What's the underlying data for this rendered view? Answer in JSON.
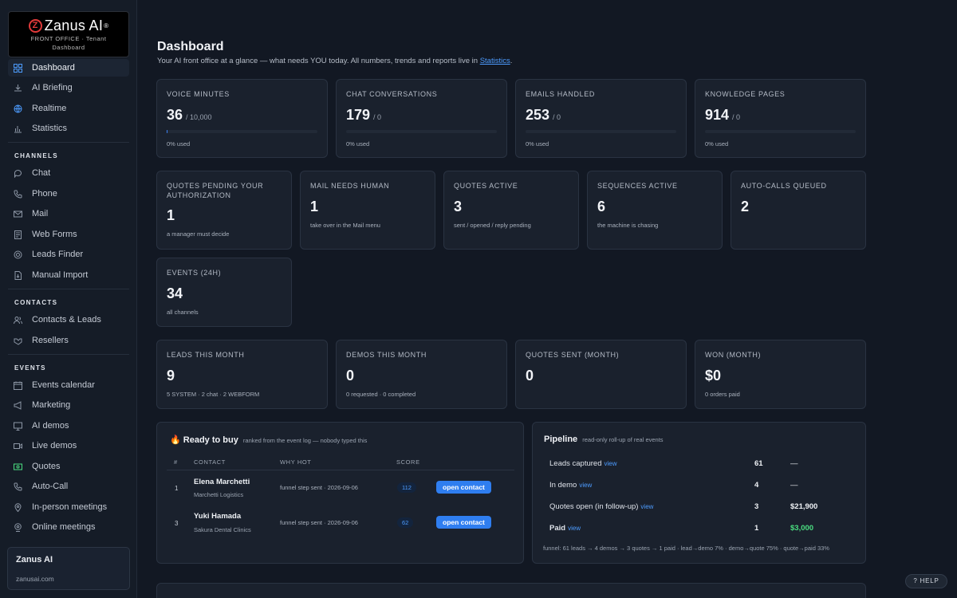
{
  "brand": {
    "name": "Zanus AI",
    "registered": "®",
    "sub1": "FRONT OFFICE · Tenant",
    "sub2": "Dashboard"
  },
  "sidebar": {
    "top_items": [
      {
        "label": "Dashboard",
        "icon": "grid-icon",
        "active": true
      },
      {
        "label": "AI Briefing",
        "icon": "briefing-icon"
      },
      {
        "label": "Realtime",
        "icon": "globe-icon"
      },
      {
        "label": "Statistics",
        "icon": "bar-chart-icon"
      }
    ],
    "sections": {
      "channels": "CHANNELS",
      "contacts": "CONTACTS",
      "events": "EVENTS"
    },
    "channels": [
      {
        "label": "Chat",
        "icon": "chat-icon"
      },
      {
        "label": "Phone",
        "icon": "phone-icon"
      },
      {
        "label": "Mail",
        "icon": "mail-icon"
      },
      {
        "label": "Web Forms",
        "icon": "form-icon"
      },
      {
        "label": "Leads Finder",
        "icon": "radar-icon"
      },
      {
        "label": "Manual Import",
        "icon": "import-icon"
      }
    ],
    "contacts": [
      {
        "label": "Contacts & Leads",
        "icon": "users-icon"
      },
      {
        "label": "Resellers",
        "icon": "handshake-icon"
      }
    ],
    "events": [
      {
        "label": "Events calendar",
        "icon": "calendar-icon"
      },
      {
        "label": "Marketing",
        "icon": "megaphone-icon"
      },
      {
        "label": "AI demos",
        "icon": "screen-icon"
      },
      {
        "label": "Live demos",
        "icon": "video-icon"
      },
      {
        "label": "Quotes",
        "icon": "quote-icon"
      },
      {
        "label": "Auto-Call",
        "icon": "auto-call-icon"
      },
      {
        "label": "In-person meetings",
        "icon": "pin-icon"
      },
      {
        "label": "Online meetings",
        "icon": "webcam-icon"
      }
    ],
    "tenant": {
      "name": "Zanus AI",
      "domain": "zanusai.com"
    }
  },
  "header": {
    "title": "Dashboard",
    "subtitle": "Your AI front office at a glance — what needs YOU today. All numbers, trends and reports live in",
    "link": "Statistics",
    "period": "."
  },
  "usage": [
    {
      "label": "VOICE MINUTES",
      "value": "36",
      "of": "/ 10,000",
      "note": "0% used",
      "fraction": 0.0036
    },
    {
      "label": "CHAT CONVERSATIONS",
      "value": "179",
      "of": "/ 0",
      "note": "0% used",
      "fraction": 0
    },
    {
      "label": "EMAILS HANDLED",
      "value": "253",
      "of": "/ 0",
      "note": "0% used",
      "fraction": 0
    },
    {
      "label": "KNOWLEDGE PAGES",
      "value": "914",
      "of": "/ 0",
      "note": "0% used",
      "fraction": 0
    }
  ],
  "attention": [
    {
      "label": "QUOTES PENDING YOUR AUTHORIZATION",
      "value": "1",
      "note": "a manager must decide"
    },
    {
      "label": "MAIL NEEDS HUMAN",
      "value": "1",
      "note": "take over in the Mail menu"
    },
    {
      "label": "QUOTES ACTIVE",
      "value": "3",
      "note": "sent / opened / reply pending"
    },
    {
      "label": "SEQUENCES ACTIVE",
      "value": "6",
      "note": "the machine is chasing"
    },
    {
      "label": "AUTO-CALLS QUEUED",
      "value": "2",
      "note": ""
    },
    {
      "label": "EVENTS (24H)",
      "value": "34",
      "note": "all channels"
    }
  ],
  "month": [
    {
      "label": "LEADS THIS MONTH",
      "value": "9",
      "note": "5 SYSTEM · 2 chat · 2 WEBFORM"
    },
    {
      "label": "DEMOS THIS MONTH",
      "value": "0",
      "note": "0 requested · 0 completed"
    },
    {
      "label": "QUOTES SENT (MONTH)",
      "value": "0",
      "note": ""
    },
    {
      "label": "WON (MONTH)",
      "value": "$0",
      "note": "0 orders paid"
    }
  ],
  "ready": {
    "title": "Ready to buy",
    "hint": "ranked from the event log — nobody typed this",
    "headers": {
      "num": "#",
      "contact": "CONTACT",
      "why": "WHY HOT",
      "score": "SCORE"
    },
    "rows": [
      {
        "num": "1",
        "name": "Elena Marchetti",
        "company": "Marchetti Logistics",
        "why": "funnel step sent · 2026-09-06",
        "score": "112",
        "action": "open contact"
      },
      {
        "num": "3",
        "name": "Yuki Hamada",
        "company": "Sakura Dental Clinics",
        "why": "funnel step sent · 2026-09-06",
        "score": "62",
        "action": "open contact"
      }
    ]
  },
  "pipeline": {
    "title": "Pipeline",
    "hint": "read-only roll-up of real events",
    "rows": [
      {
        "label": "Leads captured",
        "link": "view",
        "count": "61",
        "amount": "—"
      },
      {
        "label": "In demo",
        "link": "view",
        "count": "4",
        "amount": "—"
      },
      {
        "label": "Quotes open (in follow-up)",
        "link": "view",
        "count": "3",
        "amount": "$21,900"
      },
      {
        "label": "Paid",
        "link": "view",
        "count": "1",
        "amount": "$3,000"
      }
    ],
    "funnel": "funnel: 61 leads → 4 demos → 3 quotes → 1 paid · lead→demo 7% · demo→quote 75% · quote→paid 33%"
  },
  "help": "? HELP"
}
